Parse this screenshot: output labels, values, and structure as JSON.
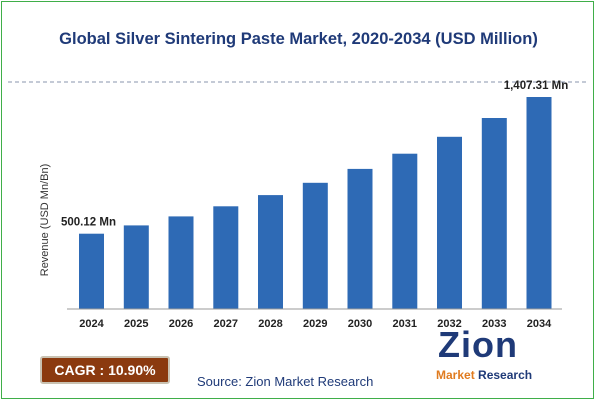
{
  "chart_data": {
    "type": "bar",
    "title": "Global Silver Sintering Paste Market, 2020-2034 (USD Million)",
    "ylabel": "Revenue (USD Mn/Bn)",
    "categories": [
      "2024",
      "2025",
      "2026",
      "2027",
      "2028",
      "2029",
      "2030",
      "2031",
      "2032",
      "2033",
      "2034"
    ],
    "values": [
      500.12,
      555,
      615,
      682,
      756,
      838,
      930,
      1031,
      1143,
      1268,
      1407.31
    ],
    "data_labels": [
      {
        "index": 0,
        "text": "500.12 Mn"
      },
      {
        "index": 10,
        "text": "1,407.31 Mn"
      }
    ],
    "ylim": [
      0,
      1500
    ],
    "bar_color": "#2e6ab5",
    "grid": false
  },
  "cagr": {
    "text": "CAGR : 10.90%"
  },
  "source": {
    "text": "Source: Zion Market Research"
  },
  "logo": {
    "word": "Zion",
    "line1": "Market",
    "line2": "Research"
  }
}
